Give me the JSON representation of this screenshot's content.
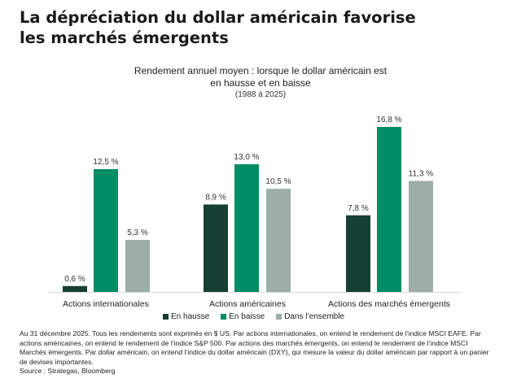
{
  "header": {
    "title_line1": "La dépréciation du dollar américain favorise",
    "title_line2": "les marchés émergents"
  },
  "chart_data": {
    "type": "bar",
    "title_line1": "Rendement annuel moyen : lorsque le dollar américain est",
    "title_line2": "en hausse et en baisse",
    "subtitle": "(1988 à 2025)",
    "categories": [
      "Actions internationales",
      "Actions américaines",
      "Actions des marchés émergents"
    ],
    "series": [
      {
        "name": "En hausse",
        "color": "#173f33",
        "values": [
          0.6,
          8.9,
          7.8
        ],
        "labels": [
          "0,6 %",
          "8,9 %",
          "7,8 %"
        ]
      },
      {
        "name": "En baisse",
        "color": "#008c64",
        "values": [
          12.5,
          13.0,
          16.8
        ],
        "labels": [
          "12,5 %",
          "13,0 %",
          "16,8 %"
        ]
      },
      {
        "name": "Dans l’ensemble",
        "color": "#9dada8",
        "values": [
          5.3,
          10.5,
          11.3
        ],
        "labels": [
          "5,3 %",
          "10,5 %",
          "11,3 %"
        ]
      }
    ],
    "ylim": [
      0,
      17
    ],
    "grid": false,
    "legend_position": "bottom",
    "xlabel": "",
    "ylabel": ""
  },
  "footnote": {
    "text": "Au 31 décembre 2025. Tous les rendements sont exprimés en $ US. Par actions internationales, on entend le rendement de l’indice MSCI EAFE. Par actions américaines, on entend le rendement de l’indice S&P 500. Par actions des marchés émergents, on entend le rendement de l’indice MSCI Marchés émergents. Par dollar américain, on entend l’indice du dollar américain (DXY), qui mesure la valeur du dollar américain par rapport à un panier de devises importantes.",
    "source": "Source : Strategas, Bloomberg"
  }
}
